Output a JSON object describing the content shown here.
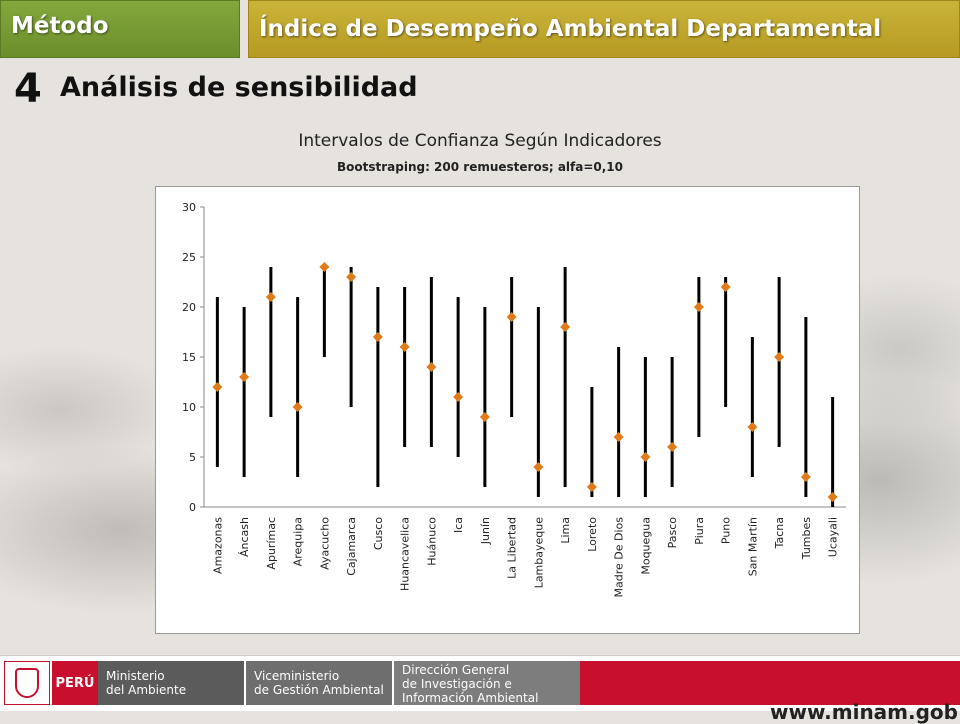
{
  "header": {
    "tab_left": "Método",
    "tab_right": "Índice de Desempeño Ambiental Departamental"
  },
  "section": {
    "number": "4",
    "title": "Análisis de sensibilidad"
  },
  "chart_data": {
    "type": "scatter",
    "title": "Intervalos de Confianza Según Indicadores",
    "subtitle": "Bootstraping: 200 remuesteros; alfa=0,10",
    "xlabel": "",
    "ylabel": "",
    "ylim": [
      0,
      30
    ],
    "yticks": [
      0,
      5,
      10,
      15,
      20,
      25,
      30
    ],
    "grid": false,
    "legend": "none",
    "marker_color": "#e07b1a",
    "interval_color": "#000000",
    "categories": [
      "Amazonas",
      "Áncash",
      "Apurímac",
      "Arequipa",
      "Ayacucho",
      "Cajamarca",
      "Cusco",
      "Huancavelica",
      "Huánuco",
      "Ica",
      "Junín",
      "La Libertad",
      "Lambayeque",
      "Lima",
      "Loreto",
      "Madre De Dios",
      "Moquegua",
      "Pasco",
      "Piura",
      "Puno",
      "San Martín",
      "Tacna",
      "Tumbes",
      "Ucayali"
    ],
    "values": [
      12,
      13,
      21,
      10,
      24,
      23,
      17,
      16,
      14,
      11,
      9,
      19,
      4,
      18,
      2,
      7,
      5,
      6,
      20,
      22,
      8,
      15,
      3,
      1
    ],
    "lower": [
      4,
      3,
      9,
      3,
      15,
      10,
      2,
      6,
      6,
      5,
      2,
      9,
      1,
      2,
      1,
      1,
      1,
      2,
      7,
      10,
      3,
      6,
      1,
      0
    ],
    "upper": [
      21,
      20,
      24,
      21,
      24,
      24,
      22,
      22,
      23,
      21,
      20,
      23,
      20,
      24,
      12,
      16,
      15,
      15,
      23,
      23,
      17,
      23,
      19,
      11
    ]
  },
  "footer": {
    "country": "PERÚ",
    "ministry": [
      "Ministerio",
      "del Ambiente"
    ],
    "vice": [
      "Viceministerio",
      "de Gestión Ambiental"
    ],
    "direction": [
      "Dirección General",
      "de Investigación e",
      "Información Ambiental"
    ],
    "url": "www.minam.gob.pe"
  }
}
